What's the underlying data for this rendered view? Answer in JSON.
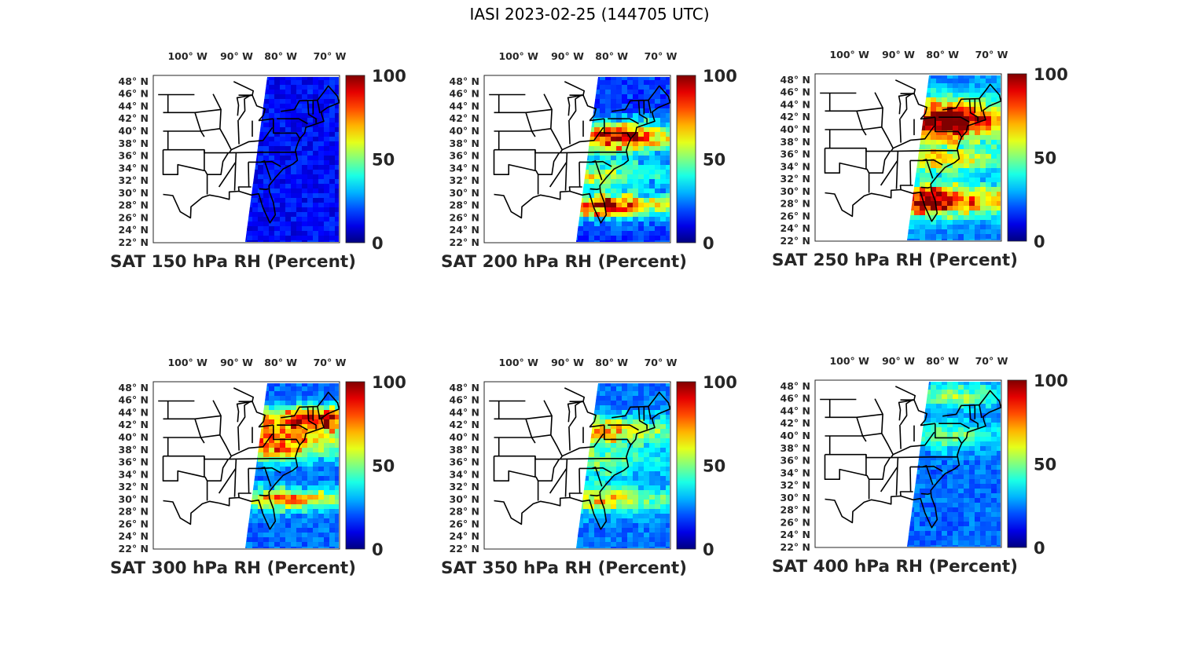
{
  "figure_title": "IASI 2023-02-25 (144705 UTC)",
  "chart_data": [
    {
      "type": "heatmap",
      "title": "SAT 150 hPa RH (Percent)",
      "level_hPa": 150,
      "variable": "RH",
      "units": "Percent",
      "colormap": "jet",
      "clim": [
        0,
        100
      ],
      "colorbar_ticks": [
        "0",
        "50",
        "100"
      ],
      "lat_ticks": [
        "22° N",
        "24° N",
        "26° N",
        "28° N",
        "30° N",
        "32° N",
        "34° N",
        "36° N",
        "38° N",
        "40° N",
        "42° N",
        "44° N",
        "46° N",
        "48° N"
      ],
      "lon_ticks": [
        "100° W",
        "90° W",
        "80° W",
        "70° W"
      ],
      "lat_range": [
        22,
        49
      ],
      "lon_range": [
        -105,
        -67
      ],
      "swath": "eastern US and western Atlantic",
      "humid_features": []
    },
    {
      "type": "heatmap",
      "title": "SAT 200 hPa RH (Percent)",
      "level_hPa": 200,
      "variable": "RH",
      "units": "Percent",
      "colormap": "jet",
      "clim": [
        0,
        100
      ],
      "colorbar_ticks": [
        "0",
        "50",
        "100"
      ],
      "lat_ticks": [
        "22° N",
        "24° N",
        "26° N",
        "28° N",
        "30° N",
        "32° N",
        "34° N",
        "36° N",
        "38° N",
        "40° N",
        "42° N",
        "44° N",
        "46° N",
        "48° N"
      ],
      "lon_ticks": [
        "100° W",
        "90° W",
        "80° W",
        "70° W"
      ],
      "lat_range": [
        22,
        49
      ],
      "lon_range": [
        -105,
        -67
      ],
      "swath": "eastern US and western Atlantic",
      "humid_features": [
        "mid-Atlantic band ~37-41° N",
        "band ~27-29° N"
      ]
    },
    {
      "type": "heatmap",
      "title": "SAT 250 hPa RH (Percent)",
      "level_hPa": 250,
      "variable": "RH",
      "units": "Percent",
      "colormap": "jet",
      "clim": [
        0,
        100
      ],
      "colorbar_ticks": [
        "0",
        "50",
        "100"
      ],
      "lat_ticks": [
        "22° N",
        "24° N",
        "26° N",
        "28° N",
        "30° N",
        "32° N",
        "34° N",
        "36° N",
        "38° N",
        "40° N",
        "42° N",
        "44° N",
        "46° N",
        "48° N"
      ],
      "lon_ticks": [
        "100° W",
        "90° W",
        "80° W",
        "70° W"
      ],
      "lat_range": [
        22,
        49
      ],
      "lon_range": [
        -105,
        -67
      ],
      "swath": "eastern US and western Atlantic",
      "humid_features": [
        "Great Lakes / Northeast ~38-44° N",
        "band ~27-30° N"
      ]
    },
    {
      "type": "heatmap",
      "title": "SAT 300 hPa RH (Percent)",
      "level_hPa": 300,
      "variable": "RH",
      "units": "Percent",
      "colormap": "jet",
      "clim": [
        0,
        100
      ],
      "colorbar_ticks": [
        "0",
        "50",
        "100"
      ],
      "lat_ticks": [
        "22° N",
        "24° N",
        "26° N",
        "28° N",
        "30° N",
        "32° N",
        "34° N",
        "36° N",
        "38° N",
        "40° N",
        "42° N",
        "44° N",
        "46° N",
        "48° N"
      ],
      "lon_ticks": [
        "100° W",
        "90° W",
        "80° W",
        "70° W"
      ],
      "lat_range": [
        22,
        49
      ],
      "lon_range": [
        -105,
        -67
      ],
      "swath": "eastern US and western Atlantic",
      "humid_features": [
        "New England ~43° N",
        "mid-Atlantic ~38-40° N",
        "band ~29-31° N"
      ]
    },
    {
      "type": "heatmap",
      "title": "SAT 350 hPa RH (Percent)",
      "level_hPa": 350,
      "variable": "RH",
      "units": "Percent",
      "colormap": "jet",
      "clim": [
        0,
        100
      ],
      "colorbar_ticks": [
        "0",
        "50",
        "100"
      ],
      "lat_ticks": [
        "22° N",
        "24° N",
        "26° N",
        "28° N",
        "30° N",
        "32° N",
        "34° N",
        "36° N",
        "38° N",
        "40° N",
        "42° N",
        "44° N",
        "46° N",
        "48° N"
      ],
      "lon_ticks": [
        "100° W",
        "90° W",
        "80° W",
        "70° W"
      ],
      "lat_range": [
        22,
        49
      ],
      "lon_range": [
        -105,
        -67
      ],
      "swath": "eastern US and western Atlantic",
      "humid_features": [
        "moderate band ~39-43° N",
        "moderate band ~29-31° N"
      ]
    },
    {
      "type": "heatmap",
      "title": "SAT 400 hPa RH (Percent)",
      "level_hPa": 400,
      "variable": "RH",
      "units": "Percent",
      "colormap": "jet",
      "clim": [
        0,
        100
      ],
      "colorbar_ticks": [
        "0",
        "50",
        "100"
      ],
      "lat_ticks": [
        "22° N",
        "24° N",
        "26° N",
        "28° N",
        "30° N",
        "32° N",
        "34° N",
        "36° N",
        "38° N",
        "40° N",
        "42° N",
        "44° N",
        "46° N",
        "48° N"
      ],
      "lon_ticks": [
        "100° W",
        "90° W",
        "80° W",
        "70° W"
      ],
      "lat_range": [
        22,
        49
      ],
      "lon_range": [
        -105,
        -67
      ],
      "swath": "eastern US and western Atlantic",
      "humid_features": [
        "light band ~39-41° N",
        "light band ~45-48° N"
      ]
    }
  ]
}
